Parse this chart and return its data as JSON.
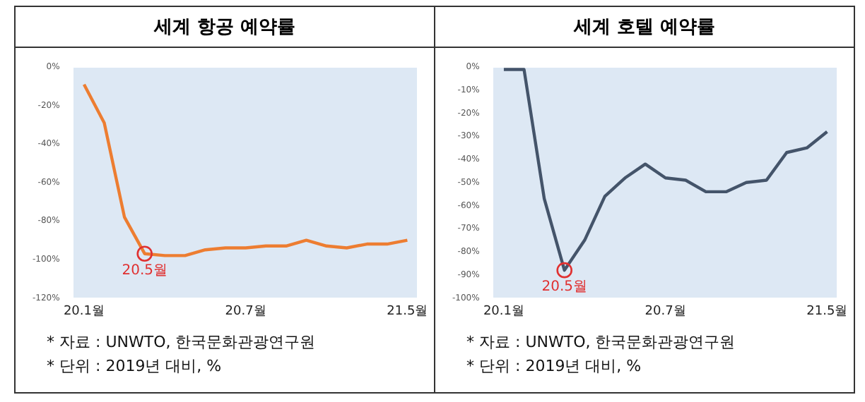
{
  "chart_data": [
    {
      "type": "line",
      "title": "세계 항공 예약률",
      "categories": [
        "20.1월",
        null,
        null,
        null,
        null,
        null,
        null,
        null,
        "20.7월",
        null,
        null,
        null,
        null,
        null,
        null,
        null,
        "21.5월"
      ],
      "series": [
        {
          "color": "#ed7d31",
          "values": [
            -9,
            -29,
            -78,
            -97,
            -98,
            -98,
            -95,
            -94,
            -94,
            -93,
            -93,
            -90,
            -93,
            -94,
            -92,
            -92,
            -90
          ]
        }
      ],
      "ylim": [
        -120,
        0
      ],
      "yticks": [
        {
          "value": -120,
          "label": "-120%"
        },
        {
          "value": -100,
          "label": "-100%"
        },
        {
          "value": -80,
          "label": "-80%"
        },
        {
          "value": -60,
          "label": "-60%"
        },
        {
          "value": -40,
          "label": "-40%"
        },
        {
          "value": -20,
          "label": "-20%"
        },
        {
          "value": 0,
          "label": "0%"
        }
      ],
      "annotations": [
        {
          "text": "20.5월",
          "y": -97
        },
        "* 자료 : UNWTO, 한국문화관광연구원",
        "* 단위 : 2019년 대비, %"
      ]
    },
    {
      "type": "line",
      "title": "세계 호텔 예약률",
      "categories": [
        "20.1월",
        null,
        null,
        null,
        null,
        null,
        null,
        null,
        "20.7월",
        null,
        null,
        null,
        null,
        null,
        null,
        null,
        "21.5월"
      ],
      "series": [
        {
          "color": "#44546a",
          "values": [
            -1,
            -1,
            -57,
            -88,
            -75,
            -56,
            -48,
            -42,
            -48,
            -49,
            -54,
            -54,
            -50,
            -49,
            -37,
            -35,
            -28
          ]
        }
      ],
      "ylim": [
        -100,
        0
      ],
      "yticks": [
        {
          "value": -100,
          "label": "-100%"
        },
        {
          "value": -90,
          "label": "-90%"
        },
        {
          "value": -80,
          "label": "-80%"
        },
        {
          "value": -70,
          "label": "-70%"
        },
        {
          "value": -60,
          "label": "-60%"
        },
        {
          "value": -50,
          "label": "-50%"
        },
        {
          "value": -40,
          "label": "-40%"
        },
        {
          "value": -30,
          "label": "-30%"
        },
        {
          "value": -20,
          "label": "-20%"
        },
        {
          "value": -10,
          "label": "-10%"
        },
        {
          "value": 0,
          "label": "0%"
        }
      ],
      "annotations": [
        {
          "text": "20.5월",
          "y": -88
        },
        "* 자료 : UNWTO, 한국문화관광연구원",
        "* 단위 : 2019년 대비, %"
      ]
    }
  ]
}
